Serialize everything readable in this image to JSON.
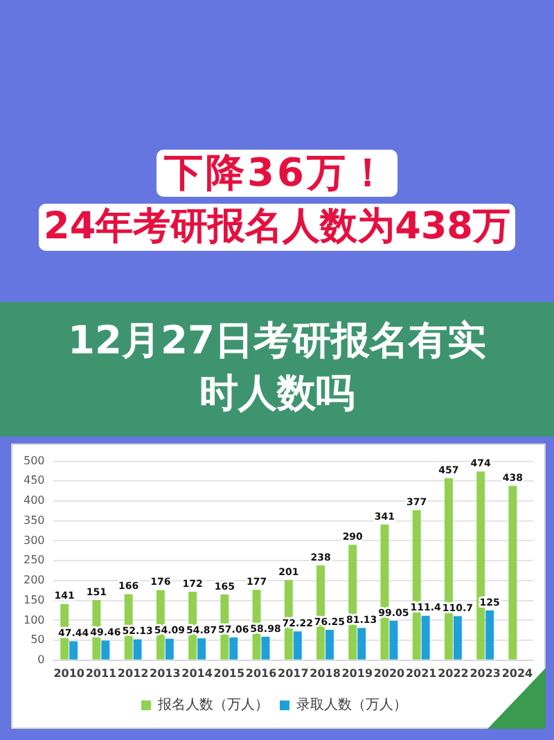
{
  "chart_data": {
    "type": "bar",
    "title": "下降36万！",
    "subtitle": "24年考研报名人数为438万",
    "annotations": [
      "12月27日考研报名有实时人数吗"
    ],
    "categories": [
      "2010",
      "2011",
      "2012",
      "2013",
      "2014",
      "2015",
      "2016",
      "2017",
      "2018",
      "2019",
      "2020",
      "2021",
      "2022",
      "2023",
      "2024"
    ],
    "series": [
      {
        "name": "报名人数（万人）",
        "color": "#92d050",
        "values": [
          141,
          151,
          166,
          176,
          172,
          165,
          177,
          201,
          238,
          290,
          341,
          377,
          457,
          474,
          438
        ]
      },
      {
        "name": "录取人数（万人）",
        "color": "#1fa0da",
        "values": [
          47.44,
          49.46,
          52.13,
          54.09,
          54.87,
          57.06,
          58.98,
          72.22,
          76.25,
          81.13,
          99.05,
          111.4,
          110.7,
          125,
          null
        ]
      }
    ],
    "ylim": [
      0,
      500
    ],
    "yticks": [
      0,
      50,
      100,
      150,
      200,
      250,
      300,
      350,
      400,
      450,
      500
    ],
    "grid": "y",
    "legend": "bottom",
    "data_labels": true
  }
}
